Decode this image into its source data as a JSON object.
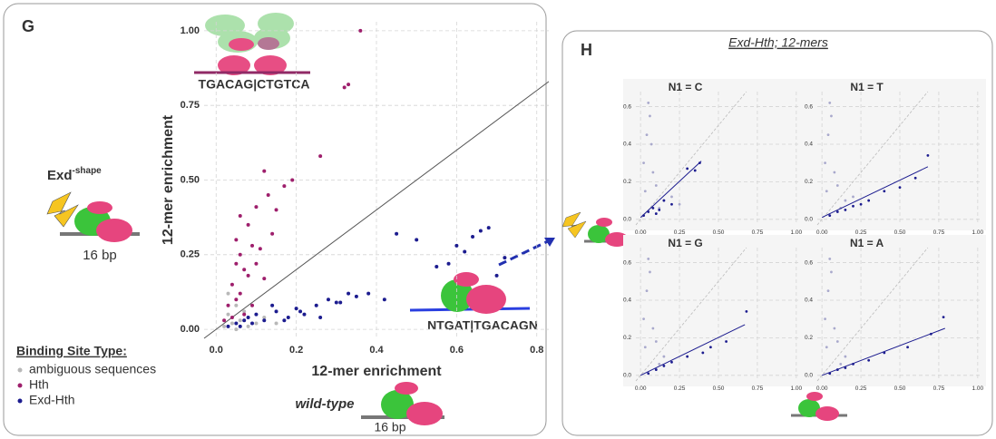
{
  "panel_g": {
    "label": "G",
    "exd": "Exd",
    "exd_sup": "-shape",
    "bp_left": "16 bp",
    "wild_type": "wild-type",
    "bp_bottom": "16 bp",
    "hth_site": "TGACAG|CTGTCA",
    "exd_hth_site": "NTGAT|TGACAGN"
  },
  "panel_h": {
    "label": "H",
    "title": "Exd-Hth; 12-mers"
  },
  "chart_data": [
    {
      "type": "scatter",
      "xlabel": "12-mer enrichment",
      "ylabel": "12-mer enrichment",
      "xlim": [
        -0.03,
        0.83
      ],
      "ylim": [
        -0.03,
        1.03
      ],
      "xticks": [
        {
          "value": 0,
          "label": "0.0"
        },
        0.2,
        0.4,
        0.6,
        0.8
      ],
      "yticks": [
        {
          "value": 0,
          "label": "0.00"
        },
        0.25,
        {
          "value": 0.5,
          "label": "0.50"
        },
        0.75,
        {
          "value": 1,
          "label": "1.00"
        }
      ],
      "grid": true,
      "diagonal": true,
      "legend": "bottom-left",
      "legend_title": "Binding Site Type:",
      "series": [
        {
          "name": "ambiguous sequences",
          "color": "#b8b8b8",
          "x": [
            0.02,
            0.03,
            0.04,
            0.05,
            0.06,
            0.08,
            0.1,
            0.12,
            0.03,
            0.05,
            0.07,
            0.15
          ],
          "values": [
            0.01,
            0.05,
            0.02,
            0.08,
            0.03,
            0.01,
            0.02,
            0.04,
            0.12,
            0.0,
            0.06,
            0.02
          ]
        },
        {
          "name": "Hth",
          "color": "#9e1f6c",
          "x": [
            0.05,
            0.06,
            0.07,
            0.04,
            0.08,
            0.1,
            0.12,
            0.05,
            0.06,
            0.09,
            0.11,
            0.13,
            0.15,
            0.03,
            0.07,
            0.08,
            0.1,
            0.14,
            0.17,
            0.19,
            0.26,
            0.32,
            0.33,
            0.36,
            0.04,
            0.06,
            0.09,
            0.12,
            0.02,
            0.05
          ],
          "values": [
            0.3,
            0.25,
            0.2,
            0.15,
            0.35,
            0.41,
            0.53,
            0.1,
            0.38,
            0.28,
            0.27,
            0.45,
            0.4,
            0.08,
            0.05,
            0.18,
            0.22,
            0.32,
            0.48,
            0.5,
            0.58,
            0.81,
            0.82,
            1.0,
            0.04,
            0.12,
            0.08,
            0.17,
            0.03,
            0.22
          ]
        },
        {
          "name": "Exd-Hth",
          "color": "#1c1c8f",
          "x": [
            0.05,
            0.08,
            0.1,
            0.12,
            0.15,
            0.18,
            0.2,
            0.22,
            0.25,
            0.28,
            0.3,
            0.33,
            0.35,
            0.38,
            0.42,
            0.5,
            0.55,
            0.6,
            0.62,
            0.66,
            0.68,
            0.7,
            0.45,
            0.58,
            0.64,
            0.72,
            0.06,
            0.09,
            0.14,
            0.17,
            0.21,
            0.26,
            0.31,
            0.03,
            0.07
          ],
          "values": [
            0.02,
            0.04,
            0.05,
            0.03,
            0.06,
            0.04,
            0.07,
            0.05,
            0.08,
            0.1,
            0.09,
            0.12,
            0.11,
            0.12,
            0.1,
            0.3,
            0.21,
            0.28,
            0.26,
            0.33,
            0.34,
            0.18,
            0.32,
            0.22,
            0.31,
            0.24,
            0.01,
            0.02,
            0.08,
            0.03,
            0.06,
            0.04,
            0.09,
            0.01,
            0.03
          ]
        }
      ]
    },
    {
      "type": "scatter",
      "title": "N1 = C",
      "xlim": [
        -0.03,
        1.03
      ],
      "ylim": [
        -0.03,
        0.68
      ],
      "xticks": [
        {
          "value": 0,
          "label": "0.00"
        },
        0.25,
        {
          "value": 0.5,
          "label": "0.50"
        },
        0.75,
        {
          "value": 1,
          "label": "1.00"
        }
      ],
      "yticks": [
        {
          "value": 0,
          "label": "0.0"
        },
        0.2,
        0.4,
        0.6
      ],
      "grid": true,
      "diagonal": true,
      "series": [
        {
          "color": "#a9a9cc",
          "x": [
            0.02,
            0.04,
            0.06,
            0.08,
            0.1,
            0.15,
            0.2,
            0.25,
            0.05,
            0.07,
            0.03,
            0.12
          ],
          "values": [
            0.3,
            0.45,
            0.55,
            0.25,
            0.18,
            0.1,
            0.12,
            0.08,
            0.62,
            0.4,
            0.15,
            0.06
          ]
        },
        {
          "color": "#1c1c8f",
          "x": [
            0.02,
            0.05,
            0.08,
            0.1,
            0.15,
            0.2,
            0.3,
            0.38,
            0.35,
            0.12
          ],
          "values": [
            0.02,
            0.04,
            0.06,
            0.03,
            0.1,
            0.08,
            0.27,
            0.3,
            0.26,
            0.05
          ]
        }
      ],
      "fit": {
        "color": "#1c1c8f",
        "x": [
          0,
          0.39
        ],
        "y": [
          0.01,
          0.31
        ]
      }
    },
    {
      "type": "scatter",
      "title": "N1 = T",
      "xlim": [
        -0.03,
        1.03
      ],
      "ylim": [
        -0.03,
        0.68
      ],
      "xticks": [
        {
          "value": 0,
          "label": "0.00"
        },
        0.25,
        {
          "value": 0.5,
          "label": "0.50"
        },
        0.75,
        {
          "value": 1,
          "label": "1.00"
        }
      ],
      "yticks": [
        {
          "value": 0,
          "label": "0.0"
        },
        0.2,
        0.4,
        0.6
      ],
      "grid": true,
      "diagonal": true,
      "series": [
        {
          "color": "#a9a9cc",
          "x": [
            0.02,
            0.04,
            0.06,
            0.08,
            0.1,
            0.15,
            0.2,
            0.05,
            0.03,
            0.12
          ],
          "values": [
            0.3,
            0.45,
            0.55,
            0.25,
            0.18,
            0.1,
            0.12,
            0.62,
            0.15,
            0.06
          ]
        },
        {
          "color": "#1c1c8f",
          "x": [
            0.05,
            0.1,
            0.15,
            0.2,
            0.3,
            0.4,
            0.5,
            0.6,
            0.68,
            0.25
          ],
          "values": [
            0.02,
            0.04,
            0.05,
            0.07,
            0.1,
            0.15,
            0.17,
            0.22,
            0.34,
            0.08
          ]
        }
      ],
      "fit": {
        "color": "#1c1c8f",
        "x": [
          0,
          0.68
        ],
        "y": [
          0.01,
          0.28
        ]
      }
    },
    {
      "type": "scatter",
      "title": "N1 = G",
      "xlim": [
        -0.03,
        1.03
      ],
      "ylim": [
        -0.03,
        0.68
      ],
      "xticks": [
        {
          "value": 0,
          "label": "0.00"
        },
        0.25,
        {
          "value": 0.5,
          "label": "0.50"
        },
        0.75,
        {
          "value": 1,
          "label": "1.00"
        }
      ],
      "yticks": [
        {
          "value": 0,
          "label": "0.0"
        },
        0.2,
        0.4,
        0.6
      ],
      "grid": true,
      "diagonal": true,
      "series": [
        {
          "color": "#a9a9cc",
          "x": [
            0.02,
            0.04,
            0.06,
            0.08,
            0.1,
            0.15,
            0.05,
            0.03,
            0.12
          ],
          "values": [
            0.3,
            0.45,
            0.55,
            0.25,
            0.18,
            0.1,
            0.62,
            0.15,
            0.06
          ]
        },
        {
          "color": "#1c1c8f",
          "x": [
            0.05,
            0.1,
            0.2,
            0.3,
            0.45,
            0.55,
            0.68,
            0.4,
            0.15
          ],
          "values": [
            0.01,
            0.03,
            0.07,
            0.1,
            0.15,
            0.18,
            0.34,
            0.12,
            0.05
          ]
        }
      ],
      "fit": {
        "color": "#1c1c8f",
        "x": [
          0,
          0.67
        ],
        "y": [
          0,
          0.27
        ]
      }
    },
    {
      "type": "scatter",
      "title": "N1 = A",
      "xlim": [
        -0.03,
        1.03
      ],
      "ylim": [
        -0.03,
        0.68
      ],
      "xticks": [
        {
          "value": 0,
          "label": "0.00"
        },
        0.25,
        {
          "value": 0.5,
          "label": "0.50"
        },
        0.75,
        {
          "value": 1,
          "label": "1.00"
        }
      ],
      "yticks": [
        {
          "value": 0,
          "label": "0.0"
        },
        0.2,
        0.4,
        0.6
      ],
      "grid": true,
      "diagonal": true,
      "series": [
        {
          "color": "#a9a9cc",
          "x": [
            0.02,
            0.04,
            0.06,
            0.08,
            0.1,
            0.15,
            0.05,
            0.03,
            0.12
          ],
          "values": [
            0.3,
            0.45,
            0.55,
            0.25,
            0.18,
            0.1,
            0.62,
            0.15,
            0.06
          ]
        },
        {
          "color": "#1c1c8f",
          "x": [
            0.05,
            0.1,
            0.2,
            0.3,
            0.4,
            0.55,
            0.7,
            0.78,
            0.15
          ],
          "values": [
            0.01,
            0.03,
            0.06,
            0.08,
            0.12,
            0.15,
            0.22,
            0.31,
            0.04
          ]
        }
      ],
      "fit": {
        "color": "#1c1c8f",
        "x": [
          0,
          0.79
        ],
        "y": [
          0,
          0.25
        ]
      }
    }
  ]
}
